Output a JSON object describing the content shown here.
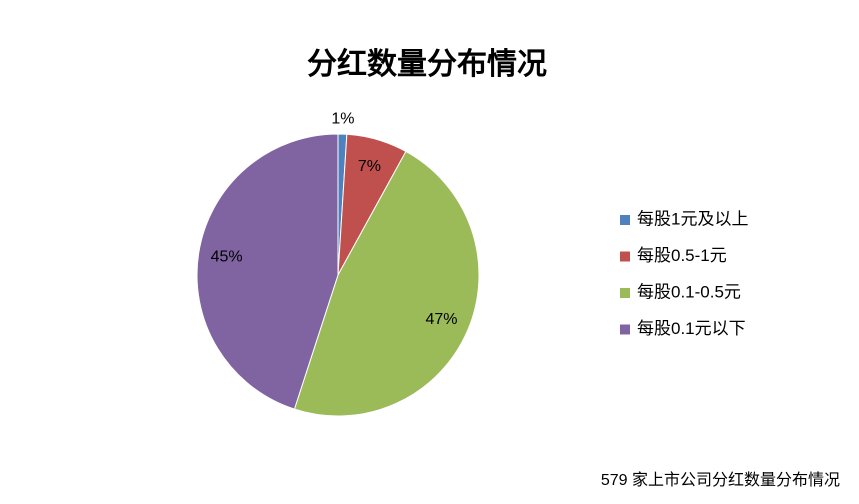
{
  "chart_data": {
    "type": "pie",
    "title": "分红数量分布情况",
    "categories": [
      "每股1元及以上",
      "每股0.5-1元",
      "每股0.1-0.5元",
      "每股0.1元以下"
    ],
    "values": [
      1,
      7,
      47,
      45
    ],
    "value_labels": [
      "1%",
      "7%",
      "47%",
      "45%"
    ],
    "colors": [
      "#4f81bd",
      "#c0504d",
      "#9bbb59",
      "#8064a2"
    ],
    "legend": "right",
    "caption": "579 家上市公司分红数量分布情况"
  }
}
